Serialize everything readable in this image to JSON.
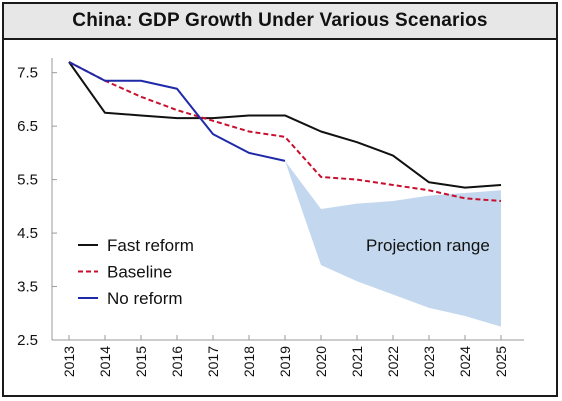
{
  "title": "China: GDP Growth Under Various Scenarios",
  "chart_data": {
    "type": "line",
    "title": "China: GDP Growth Under Various Scenarios",
    "xlabel": "",
    "ylabel": "",
    "x": [
      "2013",
      "2014",
      "2015",
      "2016",
      "2017",
      "2018",
      "2019",
      "2020",
      "2021",
      "2022",
      "2023",
      "2024",
      "2025"
    ],
    "ylim": [
      2.5,
      7.7
    ],
    "yticks": [
      "7.5",
      "6.5",
      "5.5",
      "4.5",
      "3.5",
      "2.5"
    ],
    "grid": false,
    "legend": "bottom-left",
    "series": [
      {
        "name": "Fast reform",
        "color": "#111111",
        "style": "solid",
        "values": [
          7.7,
          6.75,
          6.7,
          6.65,
          6.65,
          6.7,
          6.7,
          6.4,
          6.2,
          5.95,
          5.45,
          5.35,
          5.4
        ]
      },
      {
        "name": "Baseline",
        "color": "#c8102e",
        "style": "dashed",
        "values": [
          7.7,
          7.35,
          7.05,
          6.8,
          6.6,
          6.4,
          6.3,
          5.55,
          5.5,
          5.4,
          5.3,
          5.15,
          5.1
        ]
      },
      {
        "name": "No reform",
        "color": "#1f2aa8",
        "style": "solid",
        "values": [
          7.7,
          7.35,
          7.35,
          7.2,
          6.35,
          6.0,
          5.85,
          null,
          null,
          null,
          null,
          null,
          null
        ]
      }
    ],
    "projection_range": {
      "label": "Projection range",
      "color": "#c3d8ee",
      "x": [
        "2019",
        "2020",
        "2021",
        "2022",
        "2023",
        "2024",
        "2025"
      ],
      "upper": [
        5.85,
        4.95,
        5.05,
        5.1,
        5.2,
        5.25,
        5.3
      ],
      "lower": [
        5.85,
        3.9,
        3.6,
        3.35,
        3.1,
        2.95,
        2.75
      ]
    }
  }
}
